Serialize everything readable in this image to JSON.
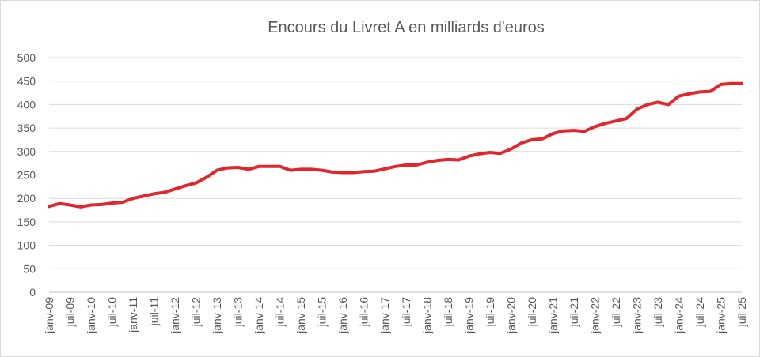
{
  "chart_data": {
    "type": "line",
    "title": "Encours du Livret A en milliards d'euros",
    "xlabel": "",
    "ylabel": "",
    "ylim": [
      0,
      500
    ],
    "yticks": [
      0,
      50,
      100,
      150,
      200,
      250,
      300,
      350,
      400,
      450,
      500
    ],
    "grid": true,
    "legend": "none",
    "line_color": "#e3262b",
    "x_tick_labels": [
      "janv-09",
      "juil-09",
      "janv-10",
      "juil-10",
      "janv-11",
      "juil-11",
      "janv-12",
      "juil-12",
      "janv-13",
      "juil-13",
      "janv-14",
      "juil-14",
      "janv-15",
      "juil-15",
      "janv-16",
      "juil-16",
      "janv-17",
      "juil-17",
      "janv-18",
      "juil-18",
      "janv-19",
      "juil-19",
      "janv-20",
      "juil-20",
      "janv-21",
      "juil-21",
      "janv-22",
      "juil-22",
      "janv-23",
      "juil-23",
      "janv-24",
      "juil-24",
      "janv-25",
      "juil-25"
    ],
    "series": [
      {
        "name": "",
        "x": [
          "janv-09",
          "avr-09",
          "juil-09",
          "oct-09",
          "janv-10",
          "avr-10",
          "juil-10",
          "oct-10",
          "janv-11",
          "avr-11",
          "juil-11",
          "oct-11",
          "janv-12",
          "avr-12",
          "juil-12",
          "oct-12",
          "janv-13",
          "avr-13",
          "juil-13",
          "oct-13",
          "janv-14",
          "avr-14",
          "juil-14",
          "oct-14",
          "janv-15",
          "avr-15",
          "juil-15",
          "oct-15",
          "janv-16",
          "avr-16",
          "juil-16",
          "oct-16",
          "janv-17",
          "avr-17",
          "juil-17",
          "oct-17",
          "janv-18",
          "avr-18",
          "juil-18",
          "oct-18",
          "janv-19",
          "avr-19",
          "juil-19",
          "oct-19",
          "janv-20",
          "avr-20",
          "juil-20",
          "oct-20",
          "janv-21",
          "avr-21",
          "juil-21",
          "oct-21",
          "janv-22",
          "avr-22",
          "juil-22",
          "oct-22",
          "janv-23",
          "avr-23",
          "juil-23",
          "oct-23",
          "janv-24",
          "avr-24",
          "juil-24",
          "oct-24",
          "janv-25",
          "avr-25",
          "juil-25"
        ],
        "values": [
          183,
          189,
          186,
          182,
          186,
          187,
          190,
          192,
          200,
          205,
          210,
          213,
          220,
          227,
          233,
          245,
          260,
          265,
          266,
          262,
          268,
          268,
          268,
          260,
          262,
          262,
          260,
          256,
          255,
          255,
          257,
          258,
          263,
          268,
          271,
          271,
          277,
          281,
          283,
          282,
          290,
          295,
          298,
          296,
          305,
          318,
          325,
          327,
          338,
          344,
          345,
          343,
          353,
          360,
          365,
          370,
          390,
          400,
          405,
          400,
          418,
          423,
          427,
          428,
          443,
          445,
          445
        ]
      }
    ]
  }
}
